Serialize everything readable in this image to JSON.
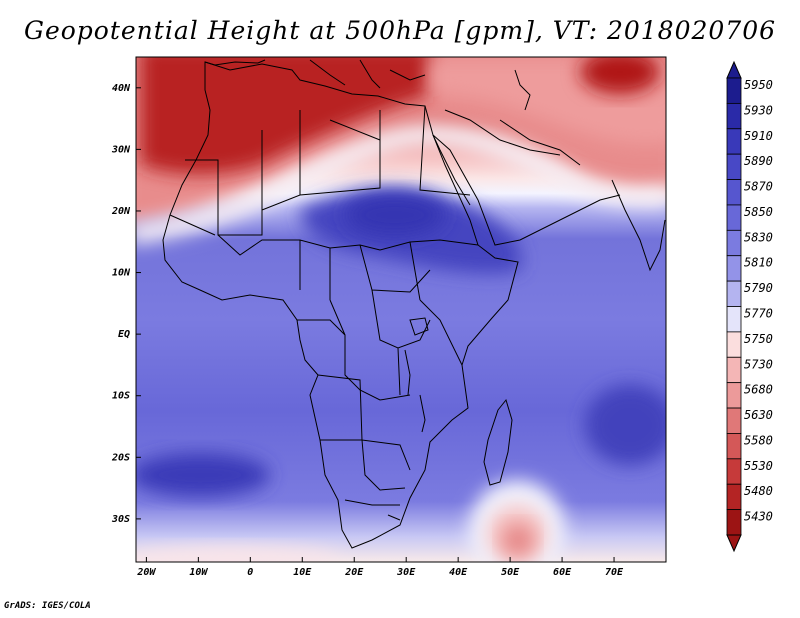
{
  "title": "Geopotential Height at 500hPa [gpm], VT: 2018020706",
  "credit": "GrADS: IGES/COLA",
  "map": {
    "lon_range": [
      -22,
      80
    ],
    "lat_range": [
      -37,
      45
    ],
    "x_ticks": [
      {
        "lon": -20,
        "label": "20W"
      },
      {
        "lon": -10,
        "label": "10W"
      },
      {
        "lon": 0,
        "label": "0"
      },
      {
        "lon": 10,
        "label": "10E"
      },
      {
        "lon": 20,
        "label": "20E"
      },
      {
        "lon": 30,
        "label": "30E"
      },
      {
        "lon": 40,
        "label": "40E"
      },
      {
        "lon": 50,
        "label": "50E"
      },
      {
        "lon": 60,
        "label": "60E"
      },
      {
        "lon": 70,
        "label": "70E"
      }
    ],
    "y_ticks": [
      {
        "lat": 40,
        "label": "40N"
      },
      {
        "lat": 30,
        "label": "30N"
      },
      {
        "lat": 20,
        "label": "20N"
      },
      {
        "lat": 10,
        "label": "10N"
      },
      {
        "lat": 0,
        "label": "EQ"
      },
      {
        "lat": -10,
        "label": "10S"
      },
      {
        "lat": -20,
        "label": "20S"
      },
      {
        "lat": -30,
        "label": "30S"
      }
    ]
  },
  "colorbar": {
    "labels": [
      "5950",
      "5930",
      "5910",
      "5890",
      "5870",
      "5850",
      "5830",
      "5810",
      "5790",
      "5770",
      "5750",
      "5730",
      "5680",
      "5630",
      "5580",
      "5530",
      "5480",
      "5430"
    ],
    "colors": [
      "#1c1c8e",
      "#2a2aa8",
      "#3939b9",
      "#4848c6",
      "#5656cf",
      "#6868d8",
      "#7b7be0",
      "#9393e8",
      "#b4b4f0",
      "#e4e4fa",
      "#fbdede",
      "#f4b6b6",
      "#ec9a9a",
      "#e07878",
      "#d45858",
      "#c63a3a",
      "#b42424",
      "#9c1414"
    ],
    "top_color": "#1c1c8e",
    "bottom_color": "#9c1414"
  },
  "features": {
    "high_ridge": "Sahara / Sudan high",
    "low_trough_north": "Mediterranean trough",
    "low_trough_east": "Central Asia trough",
    "low_cutoff": "Southwest Indian Ocean low"
  }
}
